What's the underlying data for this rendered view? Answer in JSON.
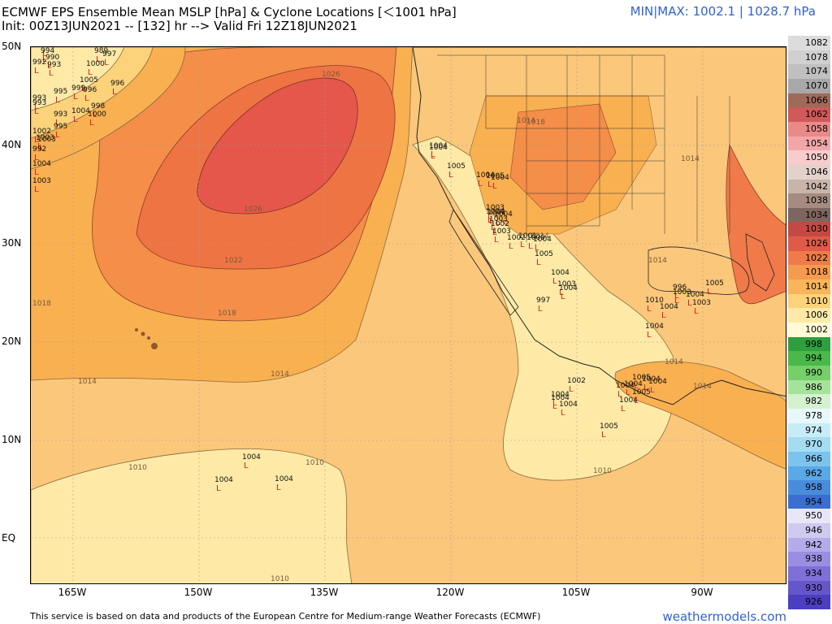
{
  "header": {
    "title_line1": "ECMWF EPS Ensemble Mean MSLP [hPa] & Cyclone Locations [＜1001 hPa]",
    "title_line2": "Init: 00Z13JUN2021 -- [132] hr --> Valid Fri 12Z18JUN2021",
    "minmax": "MIN|MAX: 1002.1 | 1028.7 hPa"
  },
  "axes": {
    "lat_labels": [
      "50N",
      "40N",
      "30N",
      "20N",
      "10N",
      "EQ"
    ],
    "lon_labels": [
      "165W",
      "150W",
      "135W",
      "120W",
      "105W",
      "90W"
    ]
  },
  "legend": {
    "levels": [
      {
        "label": "1082",
        "color": "#dcdcdc"
      },
      {
        "label": "1078",
        "color": "#d0d0d0"
      },
      {
        "label": "1074",
        "color": "#c0c0c0"
      },
      {
        "label": "1070",
        "color": "#a8a8a8"
      },
      {
        "label": "1066",
        "color": "#a06a5a"
      },
      {
        "label": "1062",
        "color": "#cf5a58"
      },
      {
        "label": "1058",
        "color": "#e98a88"
      },
      {
        "label": "1054",
        "color": "#f2a6a8"
      },
      {
        "label": "1050",
        "color": "#f8cccc"
      },
      {
        "label": "1046",
        "color": "#e3d2cc"
      },
      {
        "label": "1042",
        "color": "#c9b4aa"
      },
      {
        "label": "1038",
        "color": "#a68c80"
      },
      {
        "label": "1034",
        "color": "#7e6660"
      },
      {
        "label": "1030",
        "color": "#c34a44"
      },
      {
        "label": "1026",
        "color": "#e05a48"
      },
      {
        "label": "1022",
        "color": "#f07a4a"
      },
      {
        "label": "1018",
        "color": "#f59a4e"
      },
      {
        "label": "1014",
        "color": "#f9b55a"
      },
      {
        "label": "1010",
        "color": "#fcd27a"
      },
      {
        "label": "1006",
        "color": "#feeaa6"
      },
      {
        "label": "1002",
        "color": "#fffbd6"
      },
      {
        "label": "998",
        "color": "#2e9e3e"
      },
      {
        "label": "994",
        "color": "#4ab84a"
      },
      {
        "label": "990",
        "color": "#76cf68"
      },
      {
        "label": "986",
        "color": "#a6e39a"
      },
      {
        "label": "982",
        "color": "#d4f2cf"
      },
      {
        "label": "978",
        "color": "#e8f8fa"
      },
      {
        "label": "974",
        "color": "#c8ecf6"
      },
      {
        "label": "970",
        "color": "#a4dcf2"
      },
      {
        "label": "966",
        "color": "#7cc4ee"
      },
      {
        "label": "962",
        "color": "#5aa8e6"
      },
      {
        "label": "958",
        "color": "#4a8cdc"
      },
      {
        "label": "954",
        "color": "#3a6ed0"
      },
      {
        "label": "950",
        "color": "#e8e6f8"
      },
      {
        "label": "946",
        "color": "#cfcaf0"
      },
      {
        "label": "942",
        "color": "#b4acea"
      },
      {
        "label": "938",
        "color": "#9a8ee2"
      },
      {
        "label": "934",
        "color": "#7e70d8"
      },
      {
        "label": "930",
        "color": "#6656cc"
      },
      {
        "label": "926",
        "color": "#4c3ec0"
      }
    ]
  },
  "isobar_labels": [
    "1026",
    "1026",
    "1022",
    "1018",
    "1018",
    "1014",
    "1014",
    "1010",
    "1010",
    "1010",
    "1010",
    "1014",
    "1018",
    "1014",
    "1014",
    "1014",
    "1014",
    "1014"
  ],
  "cyclone_labels": [
    "981",
    "994",
    "990",
    "989",
    "997",
    "996",
    "993",
    "1000",
    "1005",
    "996",
    "995",
    "999",
    "992",
    "993",
    "993",
    "1004",
    "998",
    "993",
    "1000",
    "995",
    "1002",
    "1003",
    "1003",
    "992",
    "1004",
    "1003",
    "1004",
    "1004",
    "1005",
    "1004",
    "1005",
    "1004",
    "1004",
    "1003",
    "1001",
    "1004",
    "1003",
    "1002",
    "1003",
    "1002",
    "1001",
    "1000",
    "1004",
    "1005",
    "1004",
    "1003",
    "1004",
    "997",
    "996",
    "1003",
    "1004",
    "1003",
    "1005",
    "1004",
    "1010",
    "1004",
    "1004",
    "1004",
    "1005",
    "1002",
    "1004",
    "1005",
    "1004",
    "1004",
    "1004",
    "1004",
    "1004",
    "1005",
    "1004",
    "1004",
    "1004"
  ],
  "footer": {
    "disclaimer": "This service is based on data and products of the European Centre for Medium-range Weather Forecasts (ECMWF)",
    "brand": "weathermodels.com"
  }
}
